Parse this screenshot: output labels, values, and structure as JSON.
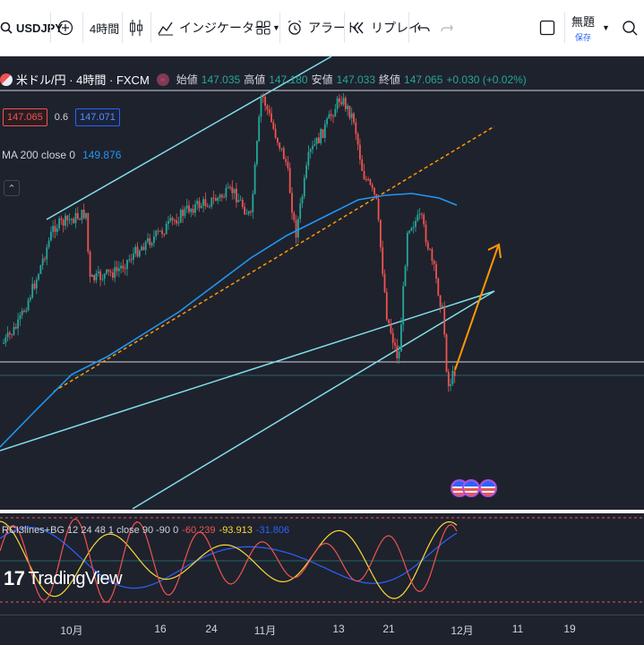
{
  "toolbar": {
    "symbol": "USDJPY",
    "interval": "4時間",
    "indicators_label": "インジケーター",
    "alert_label": "アラート",
    "replay_label": "リプレイ",
    "save_title": "無題",
    "save_sub": "保存"
  },
  "legend": {
    "symbol_title": "米ドル/円 · 4時間 · FXCM",
    "open_label": "始値",
    "open_value": "147.035",
    "high_label": "高値",
    "high_value": "147.180",
    "low_label": "安値",
    "low_value": "147.033",
    "close_label": "終値",
    "close_value": "147.065",
    "change": "+0.030 (+0.02%)",
    "bid": "147.065",
    "spread": "0.6",
    "ask": "147.071",
    "ma_label": "MA 200 close 0",
    "ma_value": "149.876"
  },
  "rci": {
    "label": "RCI3lines+BG 12 24 48 1 close 90 -90 0",
    "v1": "-60.239",
    "v2": "-93.913",
    "v3": "-31.806",
    "colors": {
      "v1": "#ef5350",
      "v2": "#fdd835",
      "v3": "#2962ff"
    }
  },
  "x_axis": {
    "ticks": [
      "10月",
      "16",
      "24",
      "11月",
      "13",
      "21",
      "12月",
      "11",
      "19"
    ]
  },
  "logo": "TradingView",
  "colors": {
    "background": "#1e222d",
    "up": "#26a69a",
    "down": "#ef5350",
    "ma": "#2196f3",
    "channel": "#80deea",
    "dashed": "#ff9800",
    "arrow": "#ff9800"
  }
}
